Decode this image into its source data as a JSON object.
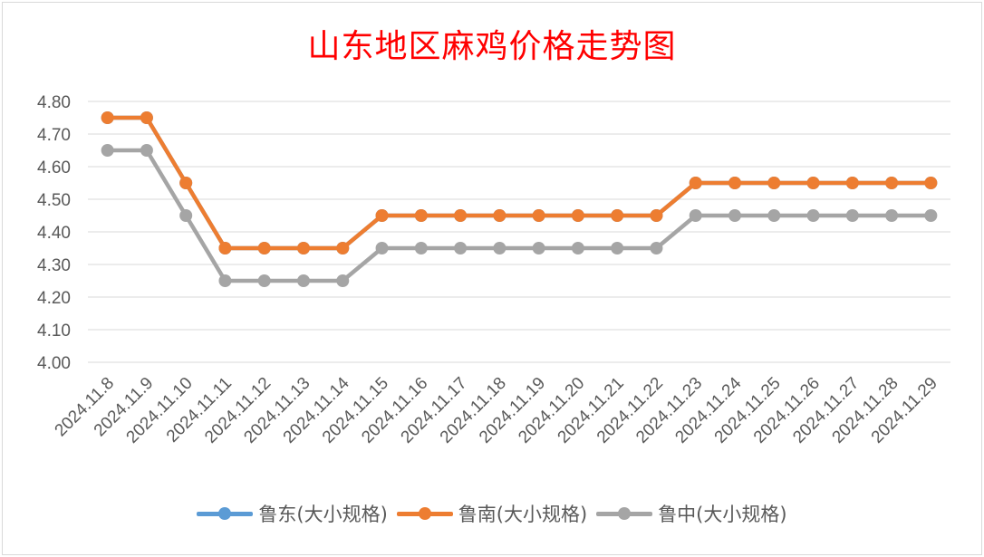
{
  "chart_data": {
    "type": "line",
    "title": "山东地区麻鸡价格走势图",
    "xlabel": "",
    "ylabel": "",
    "categories": [
      "2024.11.8",
      "2024.11.9",
      "2024.11.10",
      "2024.11.11",
      "2024.11.12",
      "2024.11.13",
      "2024.11.14",
      "2024.11.15",
      "2024.11.16",
      "2024.11.17",
      "2024.11.18",
      "2024.11.19",
      "2024.11.20",
      "2024.11.21",
      "2024.11.22",
      "2024.11.23",
      "2024.11.24",
      "2024.11.25",
      "2024.11.26",
      "2024.11.27",
      "2024.11.28",
      "2024.11.29"
    ],
    "ylim": [
      4.0,
      4.8
    ],
    "yticks": [
      "4.00",
      "4.10",
      "4.20",
      "4.30",
      "4.40",
      "4.50",
      "4.60",
      "4.70",
      "4.80"
    ],
    "grid": true,
    "legend_position": "bottom",
    "series": [
      {
        "name": "鲁东(大小规格)",
        "color": "#5b9bd5",
        "values": [
          4.75,
          4.75,
          4.55,
          4.35,
          4.35,
          4.35,
          4.35,
          4.45,
          4.45,
          4.45,
          4.45,
          4.45,
          4.45,
          4.45,
          4.45,
          4.55,
          4.55,
          4.55,
          4.55,
          4.55,
          4.55,
          4.55
        ]
      },
      {
        "name": "鲁南(大小规格)",
        "color": "#ed7d31",
        "values": [
          4.75,
          4.75,
          4.55,
          4.35,
          4.35,
          4.35,
          4.35,
          4.45,
          4.45,
          4.45,
          4.45,
          4.45,
          4.45,
          4.45,
          4.45,
          4.55,
          4.55,
          4.55,
          4.55,
          4.55,
          4.55,
          4.55
        ]
      },
      {
        "name": "鲁中(大小规格)",
        "color": "#a5a5a5",
        "values": [
          4.65,
          4.65,
          4.45,
          4.25,
          4.25,
          4.25,
          4.25,
          4.35,
          4.35,
          4.35,
          4.35,
          4.35,
          4.35,
          4.35,
          4.35,
          4.45,
          4.45,
          4.45,
          4.45,
          4.45,
          4.45,
          4.45
        ]
      }
    ]
  }
}
